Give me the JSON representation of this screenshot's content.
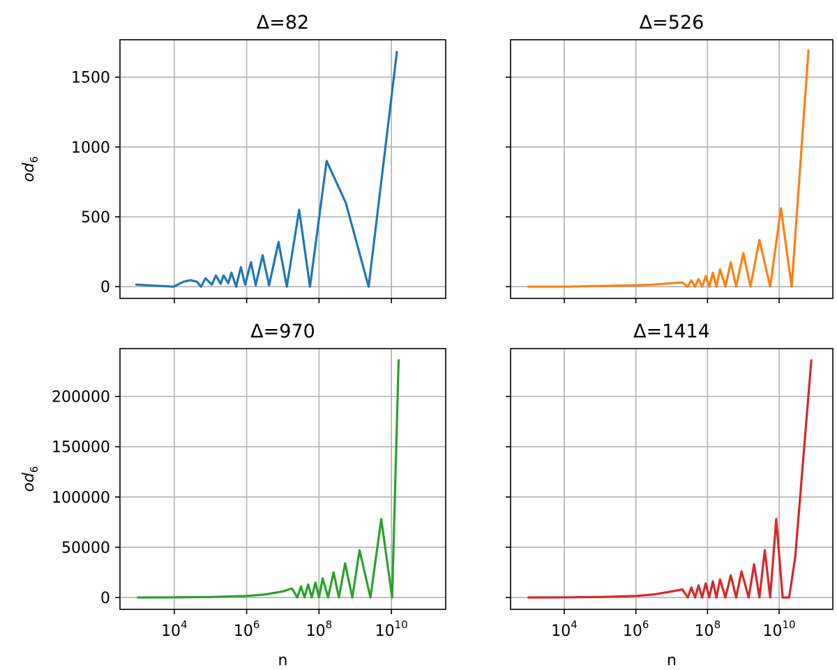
{
  "chart_data": [
    {
      "type": "line",
      "title": "Δ=82",
      "xlabel": "",
      "ylabel": "od",
      "ylabel_sub": "6",
      "xscale": "log",
      "xlim": [
        316,
        316227766016
      ],
      "ylim": [
        -84,
        1768
      ],
      "yticks": [
        0,
        500,
        1000,
        1500
      ],
      "ytick_labels": [
        "0",
        "500",
        "1000",
        "1500"
      ],
      "xticks_exp": [
        4,
        6,
        8,
        10
      ],
      "show_xtick_labels": false,
      "show_ytick_labels": true,
      "grid": true,
      "color": "#1f77b4",
      "x_log10": [
        2.95,
        3.98,
        4.25,
        4.45,
        4.63,
        4.74,
        4.86,
        5.04,
        5.15,
        5.28,
        5.36,
        5.49,
        5.58,
        5.71,
        5.84,
        5.96,
        6.12,
        6.25,
        6.44,
        6.62,
        6.88,
        7.11,
        7.45,
        7.75,
        8.21,
        8.74,
        9.37,
        10.15
      ],
      "y": [
        15,
        0,
        35,
        47,
        35,
        0,
        60,
        15,
        80,
        20,
        80,
        25,
        100,
        0,
        140,
        15,
        175,
        10,
        225,
        10,
        320,
        0,
        550,
        0,
        900,
        600,
        0,
        1680
      ]
    },
    {
      "type": "line",
      "title": "Δ=526",
      "xlabel": "",
      "ylabel": "",
      "xscale": "log",
      "xlim": [
        316,
        316227766016
      ],
      "ylim": [
        -84,
        1768
      ],
      "yticks": [
        0,
        500,
        1000,
        1500
      ],
      "xticks_exp": [
        4,
        6,
        8,
        10
      ],
      "show_xtick_labels": false,
      "show_ytick_labels": false,
      "grid": true,
      "color": "#ff7f0e",
      "x_log10": [
        3.0,
        4.0,
        5.0,
        6.0,
        6.5,
        7.0,
        7.3,
        7.45,
        7.55,
        7.65,
        7.75,
        7.85,
        7.95,
        8.05,
        8.15,
        8.25,
        8.35,
        8.5,
        8.65,
        8.8,
        9.0,
        9.2,
        9.45,
        9.75,
        10.05,
        10.35,
        10.82
      ],
      "y": [
        0,
        0,
        5,
        10,
        15,
        25,
        30,
        0,
        45,
        0,
        55,
        0,
        75,
        0,
        100,
        0,
        125,
        0,
        175,
        0,
        240,
        0,
        335,
        0,
        560,
        0,
        1690
      ]
    },
    {
      "type": "line",
      "title": "Δ=970",
      "xlabel": "n",
      "ylabel": "od",
      "ylabel_sub": "6",
      "xscale": "log",
      "xlim": [
        316,
        316227766016
      ],
      "ylim": [
        -11800,
        247600
      ],
      "yticks": [
        0,
        50000,
        100000,
        150000,
        200000
      ],
      "ytick_labels": [
        "0",
        "50000",
        "100000",
        "150000",
        "200000"
      ],
      "xticks_exp": [
        4,
        6,
        8,
        10
      ],
      "xtick_labels": [
        "10",
        "10",
        "10",
        "10"
      ],
      "xtick_sups": [
        "4",
        "6",
        "8",
        "10"
      ],
      "show_xtick_labels": true,
      "show_ytick_labels": true,
      "grid": true,
      "color": "#2ca02c",
      "x_log10": [
        3.0,
        4.0,
        5.0,
        6.0,
        6.5,
        7.0,
        7.25,
        7.4,
        7.5,
        7.6,
        7.7,
        7.8,
        7.9,
        8.0,
        8.1,
        8.25,
        8.4,
        8.55,
        8.72,
        8.92,
        9.12,
        9.42,
        9.72,
        10.02,
        10.2
      ],
      "y": [
        0,
        100,
        500,
        1500,
        3000,
        6000,
        9000,
        0,
        11000,
        0,
        13000,
        0,
        15000,
        0,
        19000,
        0,
        25000,
        0,
        34000,
        0,
        47000,
        0,
        78000,
        0,
        236000
      ]
    },
    {
      "type": "line",
      "title": "Δ=1414",
      "xlabel": "n",
      "ylabel": "",
      "xscale": "log",
      "xlim": [
        316,
        316227766016
      ],
      "ylim": [
        -11800,
        247600
      ],
      "yticks": [
        0,
        50000,
        100000,
        150000,
        200000
      ],
      "xticks_exp": [
        4,
        6,
        8,
        10
      ],
      "xtick_labels": [
        "10",
        "10",
        "10",
        "10"
      ],
      "xtick_sups": [
        "4",
        "6",
        "8",
        "10"
      ],
      "show_xtick_labels": true,
      "show_ytick_labels": false,
      "grid": true,
      "color": "#d62728",
      "x_log10": [
        3.0,
        4.0,
        5.0,
        6.0,
        6.5,
        7.0,
        7.3,
        7.45,
        7.55,
        7.65,
        7.75,
        7.85,
        7.95,
        8.05,
        8.15,
        8.25,
        8.35,
        8.5,
        8.65,
        8.8,
        8.95,
        9.15,
        9.3,
        9.45,
        9.6,
        9.75,
        9.92,
        10.1,
        10.28,
        10.45,
        10.9
      ],
      "y": [
        0,
        100,
        500,
        1500,
        3000,
        6000,
        8000,
        0,
        10000,
        0,
        12000,
        0,
        14000,
        0,
        16000,
        0,
        18000,
        0,
        22000,
        0,
        26000,
        0,
        33000,
        0,
        47000,
        0,
        78000,
        0,
        0,
        40000,
        236000
      ]
    }
  ]
}
